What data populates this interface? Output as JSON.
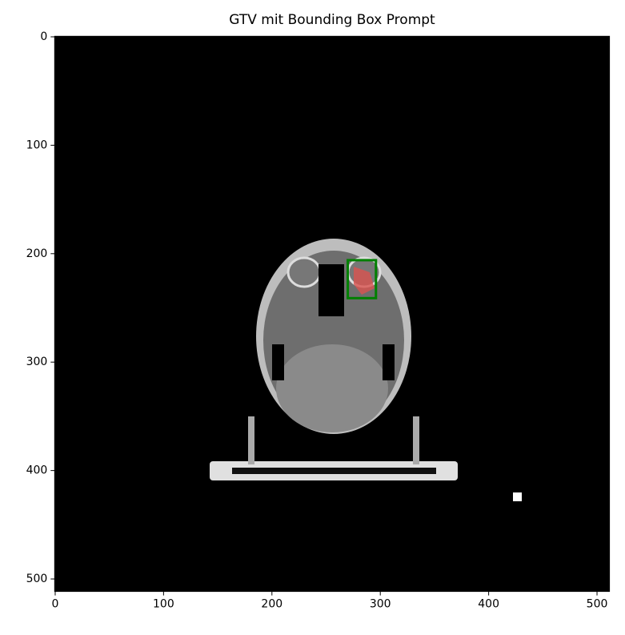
{
  "chart_data": {
    "type": "image",
    "title": "GTV mit Bounding Box Prompt",
    "xlim": [
      -0.5,
      511.5
    ],
    "ylim": [
      511.5,
      -0.5
    ],
    "xticks": [
      0,
      100,
      200,
      300,
      400,
      500
    ],
    "yticks": [
      0,
      100,
      200,
      300,
      400,
      500
    ],
    "bbox": {
      "x": [
        270,
        296
      ],
      "y": [
        206,
        241
      ],
      "color": "#008000"
    }
  }
}
